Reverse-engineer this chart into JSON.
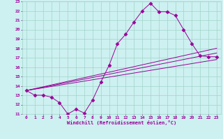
{
  "xlabel": "Windchill (Refroidissement éolien,°C)",
  "bg_color": "#cdf0f0",
  "grid_color": "#a0d4c8",
  "line_color": "#990099",
  "xlim": [
    -0.5,
    23.5
  ],
  "ylim": [
    11,
    23
  ],
  "xticks": [
    0,
    1,
    2,
    3,
    4,
    5,
    6,
    7,
    8,
    9,
    10,
    11,
    12,
    13,
    14,
    15,
    16,
    17,
    18,
    19,
    20,
    21,
    22,
    23
  ],
  "yticks": [
    11,
    12,
    13,
    14,
    15,
    16,
    17,
    18,
    19,
    20,
    21,
    22,
    23
  ],
  "curve_x": [
    0,
    1,
    2,
    3,
    4,
    5,
    6,
    7,
    8,
    9,
    10,
    11,
    12,
    13,
    14,
    15,
    16,
    17,
    18,
    19,
    20,
    21,
    22,
    23
  ],
  "curve_y": [
    13.5,
    13.0,
    13.0,
    12.8,
    12.2,
    11.0,
    11.5,
    11.1,
    12.5,
    14.4,
    16.2,
    18.5,
    19.5,
    20.8,
    22.0,
    22.8,
    21.9,
    21.9,
    21.5,
    20.0,
    18.5,
    17.2,
    17.1,
    17.1
  ],
  "line1_x": [
    0,
    23
  ],
  "line1_y": [
    13.5,
    17.5
  ],
  "line2_x": [
    0,
    23
  ],
  "line2_y": [
    13.5,
    18.0
  ],
  "line3_x": [
    0,
    23
  ],
  "line3_y": [
    13.5,
    16.8
  ]
}
